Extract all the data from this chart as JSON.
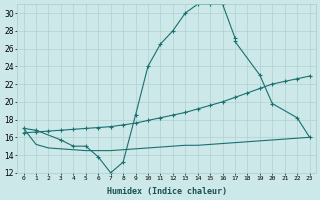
{
  "xlabel": "Humidex (Indice chaleur)",
  "bg_color": "#cce8e8",
  "grid_color": "#b0d0d0",
  "line_color": "#1a7070",
  "xlim": [
    -0.5,
    23.5
  ],
  "ylim": [
    12,
    31
  ],
  "yticks": [
    12,
    14,
    16,
    18,
    20,
    22,
    24,
    26,
    28,
    30
  ],
  "xticks": [
    0,
    1,
    2,
    3,
    4,
    5,
    6,
    7,
    8,
    9,
    10,
    11,
    12,
    13,
    14,
    15,
    16,
    17,
    18,
    19,
    20,
    21,
    22,
    23
  ],
  "curve1_x": [
    0,
    1,
    3,
    4,
    5,
    6,
    7,
    8,
    9,
    10,
    11,
    12,
    13,
    14,
    15,
    16,
    17
  ],
  "curve1_y": [
    17.0,
    16.8,
    15.7,
    15.0,
    15.0,
    13.8,
    12.0,
    13.2,
    18.5,
    24.0,
    26.5,
    28.0,
    30.0,
    31.0,
    31.0,
    31.0,
    27.2
  ],
  "curve2_x": [
    0,
    1,
    2,
    3,
    4,
    5,
    6,
    7,
    8,
    9,
    10,
    11,
    12,
    13,
    14,
    15,
    16,
    17,
    18,
    19,
    20,
    21,
    22,
    23
  ],
  "curve2_y": [
    16.5,
    16.6,
    16.7,
    16.8,
    16.9,
    17.0,
    17.1,
    17.2,
    17.4,
    17.6,
    17.9,
    18.2,
    18.5,
    18.8,
    19.2,
    19.6,
    20.0,
    20.5,
    21.0,
    21.5,
    22.0,
    22.3,
    22.6,
    22.9
  ],
  "curve3_x": [
    0,
    1,
    2,
    3,
    4,
    5,
    6,
    7,
    8,
    9,
    10,
    11,
    12,
    13,
    14,
    15,
    16,
    17,
    18,
    19,
    20,
    21,
    22,
    23
  ],
  "curve3_y": [
    17.0,
    15.2,
    14.8,
    14.7,
    14.6,
    14.5,
    14.5,
    14.5,
    14.6,
    14.7,
    14.8,
    14.9,
    15.0,
    15.1,
    15.1,
    15.2,
    15.3,
    15.4,
    15.5,
    15.6,
    15.7,
    15.8,
    15.9,
    16.0
  ],
  "curve4_x": [
    17,
    19,
    20,
    22,
    23
  ],
  "curve4_y": [
    26.8,
    23.0,
    19.8,
    18.2,
    16.0
  ]
}
